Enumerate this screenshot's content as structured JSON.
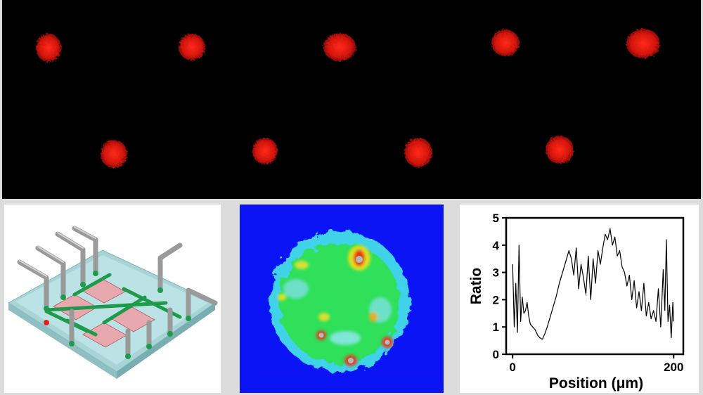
{
  "figure": {
    "top_panel": {
      "description_kind": "fluorescence-micrograph",
      "spot_color": "#e01a10"
    },
    "device_panel": {
      "description_kind": "microfluidic-device-schematic"
    },
    "heatmap_panel": {
      "description_kind": "ratiometric-heatmap",
      "background_color": "#0a14f5"
    }
  },
  "chart_data": {
    "type": "line",
    "title": "",
    "xlabel": "Position (μm)",
    "ylabel": "Ratio",
    "xlim": [
      -8,
      212
    ],
    "ylim": [
      0,
      5
    ],
    "x_ticks": [
      0,
      200
    ],
    "y_ticks": [
      0,
      1,
      2,
      3,
      4,
      5
    ],
    "grid": false,
    "series": [
      {
        "name": "",
        "color": "#000000",
        "x": [
          0,
          2,
          4,
          6,
          8,
          10,
          12,
          14,
          16,
          18,
          20,
          22,
          25,
          28,
          31,
          34,
          37,
          40,
          43,
          46,
          50,
          54,
          58,
          62,
          66,
          70,
          73,
          76,
          79,
          82,
          85,
          88,
          91,
          94,
          97,
          100,
          103,
          106,
          109,
          112,
          115,
          118,
          121,
          124,
          127,
          130,
          133,
          136,
          139,
          142,
          145,
          148,
          151,
          154,
          157,
          160,
          163,
          166,
          169,
          172,
          175,
          178,
          181,
          184,
          187,
          189,
          191,
          193,
          195,
          197,
          199,
          200
        ],
        "values": [
          3.3,
          1.0,
          2.6,
          0.8,
          4.0,
          1.2,
          2.1,
          1.5,
          1.6,
          1.9,
          1.4,
          1.1,
          1.0,
          0.9,
          0.7,
          0.6,
          0.55,
          0.75,
          1.0,
          1.3,
          1.7,
          2.1,
          2.6,
          3.0,
          3.4,
          3.8,
          3.5,
          2.9,
          3.9,
          2.4,
          3.3,
          2.8,
          2.2,
          3.6,
          2.0,
          3.5,
          2.6,
          3.8,
          3.3,
          3.9,
          4.4,
          4.2,
          4.6,
          4.0,
          4.3,
          3.6,
          3.8,
          3.2,
          3.0,
          2.5,
          2.9,
          2.0,
          2.7,
          1.7,
          2.3,
          1.6,
          2.6,
          1.4,
          1.9,
          1.3,
          1.6,
          1.2,
          2.4,
          1.0,
          3.1,
          1.6,
          4.2,
          1.2,
          1.8,
          0.6,
          1.9,
          1.2
        ]
      }
    ]
  }
}
